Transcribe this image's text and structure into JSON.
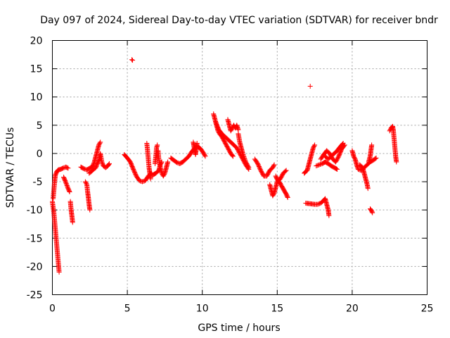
{
  "chart_data": {
    "type": "scatter",
    "title": "Day 097 of 2024, Sidereal Day-to-day VTEC variation (SDTVAR) for receiver bndr",
    "xlabel": "GPS time / hours",
    "ylabel": "SDTVAR / TECUs",
    "xlim": [
      0,
      25
    ],
    "ylim": [
      -25,
      20
    ],
    "xticks": [
      "0",
      "5",
      "10",
      "15",
      "20",
      "25"
    ],
    "yticks": [
      "20",
      "15",
      "10",
      "5",
      "0",
      "-5",
      "-10",
      "-15",
      "-20",
      "-25"
    ],
    "grid": true,
    "marker": "+",
    "color": "#ff0000",
    "segments": [
      [
        [
          0.0,
          -8.5
        ],
        [
          0.1,
          -10.5
        ],
        [
          0.2,
          -13.5
        ],
        [
          0.3,
          -16.5
        ],
        [
          0.4,
          -19.5
        ],
        [
          0.45,
          -21.0
        ]
      ],
      [
        [
          0.05,
          -8.0
        ],
        [
          0.1,
          -6.5
        ],
        [
          0.15,
          -5.0
        ],
        [
          0.2,
          -3.8
        ],
        [
          0.3,
          -3.2
        ],
        [
          0.4,
          -2.9
        ],
        [
          0.55,
          -2.8
        ],
        [
          0.7,
          -2.6
        ],
        [
          0.9,
          -2.4
        ],
        [
          1.05,
          -2.6
        ]
      ],
      [
        [
          0.75,
          -4.2
        ],
        [
          0.85,
          -4.8
        ],
        [
          0.95,
          -5.5
        ],
        [
          1.05,
          -6.2
        ],
        [
          1.15,
          -6.8
        ]
      ],
      [
        [
          1.2,
          -8.5
        ],
        [
          1.25,
          -10.0
        ],
        [
          1.3,
          -11.0
        ],
        [
          1.35,
          -12.2
        ]
      ],
      [
        [
          1.9,
          -2.4
        ],
        [
          2.1,
          -2.7
        ],
        [
          2.3,
          -2.9
        ],
        [
          2.5,
          -2.6
        ],
        [
          2.7,
          -2.2
        ],
        [
          2.8,
          -1.5
        ],
        [
          2.9,
          -0.5
        ],
        [
          3.0,
          0.5
        ],
        [
          3.1,
          1.5
        ],
        [
          3.2,
          2.0
        ]
      ],
      [
        [
          2.2,
          -5.0
        ],
        [
          2.3,
          -5.5
        ],
        [
          2.35,
          -6.8
        ],
        [
          2.4,
          -7.8
        ],
        [
          2.45,
          -9.0
        ],
        [
          2.5,
          -10.0
        ]
      ],
      [
        [
          2.45,
          -3.5
        ],
        [
          2.6,
          -3.2
        ],
        [
          2.75,
          -2.8
        ],
        [
          2.9,
          -2.5
        ],
        [
          3.0,
          -1.8
        ],
        [
          3.1,
          -1.2
        ],
        [
          3.2,
          0.0
        ],
        [
          3.3,
          -1.5
        ],
        [
          3.4,
          -2.2
        ],
        [
          3.55,
          -2.5
        ],
        [
          3.7,
          -2.2
        ],
        [
          3.8,
          -1.8
        ]
      ],
      [
        [
          5.3,
          16.6
        ],
        [
          5.35,
          16.5
        ]
      ],
      [
        [
          4.8,
          -0.2
        ],
        [
          5.0,
          -0.8
        ],
        [
          5.2,
          -1.5
        ],
        [
          5.4,
          -2.8
        ],
        [
          5.6,
          -4.0
        ],
        [
          5.8,
          -4.8
        ],
        [
          6.0,
          -5.0
        ],
        [
          6.2,
          -4.8
        ],
        [
          6.4,
          -4.0
        ],
        [
          6.6,
          -3.5
        ]
      ],
      [
        [
          6.3,
          1.8
        ],
        [
          6.35,
          0.5
        ],
        [
          6.4,
          -1.0
        ],
        [
          6.45,
          -2.5
        ],
        [
          6.5,
          -3.5
        ],
        [
          6.55,
          -4.5
        ]
      ],
      [
        [
          6.5,
          -3.5
        ],
        [
          6.7,
          -3.8
        ],
        [
          6.9,
          -3.5
        ],
        [
          7.1,
          -3.0
        ],
        [
          7.2,
          -2.0
        ],
        [
          7.3,
          -1.5
        ]
      ],
      [
        [
          6.85,
          -1.8
        ],
        [
          6.9,
          -0.5
        ],
        [
          6.95,
          1.0
        ],
        [
          7.0,
          1.5
        ]
      ],
      [
        [
          7.05,
          0.5
        ],
        [
          7.1,
          -1.0
        ],
        [
          7.2,
          -2.5
        ],
        [
          7.3,
          -3.5
        ],
        [
          7.4,
          -4.0
        ],
        [
          7.5,
          -3.5
        ],
        [
          7.6,
          -2.5
        ],
        [
          7.7,
          -1.5
        ]
      ],
      [
        [
          7.9,
          -0.8
        ],
        [
          8.1,
          -1.2
        ],
        [
          8.3,
          -1.6
        ],
        [
          8.5,
          -1.8
        ],
        [
          8.7,
          -1.5
        ],
        [
          8.9,
          -1.0
        ],
        [
          9.1,
          -0.5
        ],
        [
          9.3,
          0.3
        ],
        [
          9.5,
          1.0
        ],
        [
          9.7,
          1.2
        ],
        [
          9.9,
          0.8
        ],
        [
          10.1,
          0.0
        ],
        [
          10.2,
          -0.5
        ]
      ],
      [
        [
          9.4,
          2.0
        ],
        [
          9.45,
          1.2
        ],
        [
          9.5,
          0.5
        ],
        [
          9.55,
          -0.2
        ],
        [
          9.6,
          0.8
        ],
        [
          9.65,
          1.8
        ]
      ],
      [
        [
          10.75,
          7.0
        ],
        [
          10.85,
          6.0
        ],
        [
          10.95,
          5.0
        ],
        [
          11.05,
          4.0
        ],
        [
          11.15,
          3.5
        ],
        [
          11.3,
          3.0
        ],
        [
          11.5,
          2.0
        ],
        [
          11.7,
          1.0
        ],
        [
          11.9,
          0.0
        ],
        [
          12.05,
          -0.5
        ]
      ],
      [
        [
          10.9,
          5.5
        ],
        [
          11.1,
          4.2
        ],
        [
          11.3,
          3.5
        ],
        [
          11.5,
          3.0
        ],
        [
          11.7,
          2.5
        ],
        [
          11.9,
          2.0
        ],
        [
          12.1,
          1.5
        ],
        [
          12.3,
          1.0
        ],
        [
          12.5,
          0.0
        ],
        [
          12.7,
          -1.0
        ],
        [
          12.9,
          -2.0
        ],
        [
          13.1,
          -2.8
        ]
      ],
      [
        [
          11.7,
          6.0
        ],
        [
          11.8,
          5.0
        ],
        [
          11.9,
          4.0
        ],
        [
          12.0,
          4.5
        ],
        [
          12.1,
          5.0
        ],
        [
          12.2,
          4.5
        ],
        [
          12.3,
          5.0
        ],
        [
          12.4,
          4.2
        ]
      ],
      [
        [
          12.4,
          3.5
        ],
        [
          12.5,
          2.0
        ],
        [
          12.6,
          1.0
        ],
        [
          12.7,
          0.0
        ],
        [
          12.9,
          -1.5
        ],
        [
          13.1,
          -2.5
        ]
      ],
      [
        [
          13.5,
          -1.0
        ],
        [
          13.7,
          -1.8
        ],
        [
          13.9,
          -3.0
        ],
        [
          14.1,
          -4.0
        ],
        [
          14.3,
          -4.0
        ],
        [
          14.5,
          -3.0
        ],
        [
          14.7,
          -2.5
        ],
        [
          14.8,
          -2.0
        ]
      ],
      [
        [
          14.5,
          -5.5
        ],
        [
          14.6,
          -6.5
        ],
        [
          14.7,
          -7.5
        ],
        [
          14.8,
          -7.0
        ],
        [
          14.9,
          -6.0
        ],
        [
          15.0,
          -5.0
        ],
        [
          15.2,
          -4.5
        ],
        [
          15.4,
          -3.5
        ],
        [
          15.6,
          -3.0
        ]
      ],
      [
        [
          14.9,
          -4.0
        ],
        [
          15.0,
          -4.6
        ],
        [
          15.1,
          -5.0
        ],
        [
          15.2,
          -5.3
        ],
        [
          15.3,
          -5.8
        ],
        [
          15.45,
          -6.5
        ],
        [
          15.6,
          -7.2
        ],
        [
          15.7,
          -7.8
        ]
      ],
      [
        [
          17.2,
          11.9
        ]
      ],
      [
        [
          16.8,
          -3.5
        ],
        [
          16.9,
          -3.2
        ],
        [
          17.0,
          -3.0
        ],
        [
          17.1,
          -2.0
        ],
        [
          17.2,
          -1.0
        ],
        [
          17.3,
          0.0
        ],
        [
          17.4,
          1.0
        ],
        [
          17.5,
          1.5
        ]
      ],
      [
        [
          16.9,
          -8.8
        ],
        [
          17.2,
          -8.9
        ],
        [
          17.5,
          -9.0
        ],
        [
          17.7,
          -9.0
        ],
        [
          17.9,
          -8.8
        ],
        [
          18.1,
          -8.3
        ],
        [
          18.2,
          -8.0
        ],
        [
          18.3,
          -9.0
        ],
        [
          18.4,
          -10.0
        ],
        [
          18.45,
          -11.0
        ]
      ],
      [
        [
          17.6,
          -2.2
        ],
        [
          17.8,
          -2.0
        ],
        [
          18.0,
          -1.8
        ],
        [
          18.2,
          -1.5
        ],
        [
          18.4,
          -1.8
        ],
        [
          18.6,
          -2.2
        ],
        [
          18.8,
          -2.5
        ],
        [
          19.0,
          -2.8
        ]
      ],
      [
        [
          17.9,
          -1.0
        ],
        [
          18.1,
          -0.2
        ],
        [
          18.3,
          0.5
        ],
        [
          18.5,
          0.0
        ],
        [
          18.7,
          -1.0
        ],
        [
          18.9,
          -1.5
        ],
        [
          19.1,
          -0.5
        ],
        [
          19.3,
          0.8
        ],
        [
          19.5,
          1.5
        ]
      ],
      [
        [
          18.2,
          -0.5
        ],
        [
          18.4,
          -1.0
        ],
        [
          18.6,
          -0.5
        ],
        [
          18.8,
          0.0
        ],
        [
          19.0,
          0.5
        ],
        [
          19.2,
          1.2
        ],
        [
          19.4,
          1.8
        ]
      ],
      [
        [
          20.0,
          0.5
        ],
        [
          20.1,
          -0.5
        ],
        [
          20.2,
          -1.0
        ],
        [
          20.3,
          -2.0
        ],
        [
          20.4,
          -2.8
        ],
        [
          20.6,
          -3.0
        ],
        [
          20.8,
          -2.5
        ],
        [
          21.0,
          -2.0
        ],
        [
          21.2,
          -1.5
        ],
        [
          21.4,
          -1.2
        ],
        [
          21.6,
          -0.8
        ]
      ],
      [
        [
          20.5,
          -2.0
        ],
        [
          20.7,
          -2.5
        ],
        [
          20.8,
          -3.5
        ],
        [
          20.9,
          -4.5
        ],
        [
          21.0,
          -5.5
        ],
        [
          21.05,
          -6.2
        ]
      ],
      [
        [
          21.1,
          -1.5
        ],
        [
          21.2,
          -0.5
        ],
        [
          21.25,
          0.5
        ],
        [
          21.3,
          1.5
        ]
      ],
      [
        [
          21.2,
          -9.8
        ],
        [
          21.3,
          -10.2
        ],
        [
          21.35,
          -10.5
        ]
      ],
      [
        [
          22.5,
          4.0
        ],
        [
          22.6,
          4.5
        ],
        [
          22.7,
          4.8
        ],
        [
          22.75,
          4.0
        ],
        [
          22.8,
          2.5
        ],
        [
          22.85,
          1.0
        ],
        [
          22.9,
          -0.5
        ],
        [
          22.95,
          -1.5
        ]
      ]
    ]
  }
}
